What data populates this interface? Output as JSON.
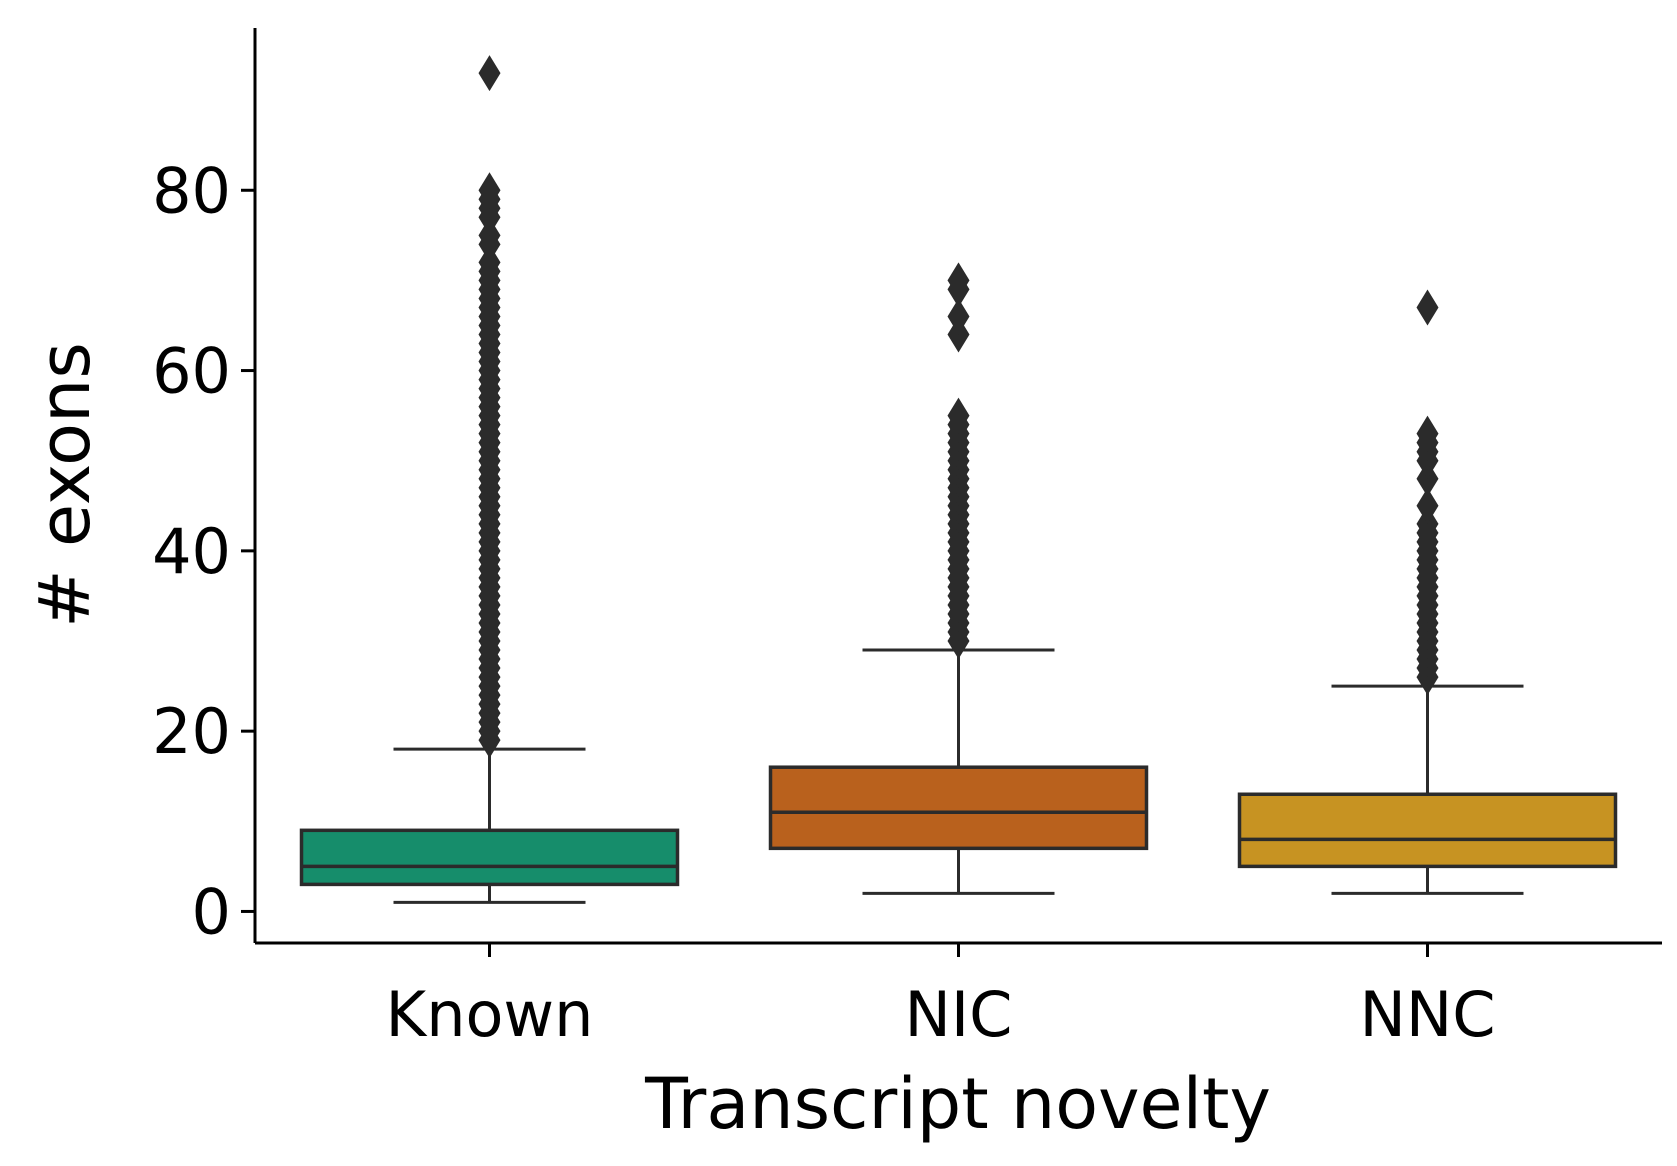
{
  "chart_data": {
    "type": "box",
    "xlabel": "Transcript novelty",
    "ylabel": "# exons",
    "categories": [
      "Known",
      "NIC",
      "NNC"
    ],
    "colors": [
      "#168d6b",
      "#b9611d",
      "#c79322"
    ],
    "outline_color": "#2b2b2b",
    "ylim": [
      -3.5,
      98
    ],
    "yticks": [
      0,
      20,
      40,
      60,
      80
    ],
    "grid": false,
    "legend": "none",
    "boxes": [
      {
        "category": "Known",
        "whisker_low": 1,
        "q1": 3,
        "median": 5,
        "q3": 9,
        "whisker_high": 18,
        "outlier_range": [
          19,
          72
        ],
        "outliers_sparse": [
          74,
          75,
          77,
          78,
          79,
          80,
          93
        ]
      },
      {
        "category": "NIC",
        "whisker_low": 2,
        "q1": 7,
        "median": 11,
        "q3": 16,
        "whisker_high": 29,
        "outlier_range": [
          30,
          54
        ],
        "outliers_sparse": [
          55,
          64,
          66,
          69,
          70
        ]
      },
      {
        "category": "NNC",
        "whisker_low": 2,
        "q1": 5,
        "median": 8,
        "q3": 13,
        "whisker_high": 25,
        "outlier_range": [
          26,
          43
        ],
        "outliers_sparse": [
          45,
          48,
          50,
          51,
          52,
          53,
          67
        ]
      }
    ]
  }
}
